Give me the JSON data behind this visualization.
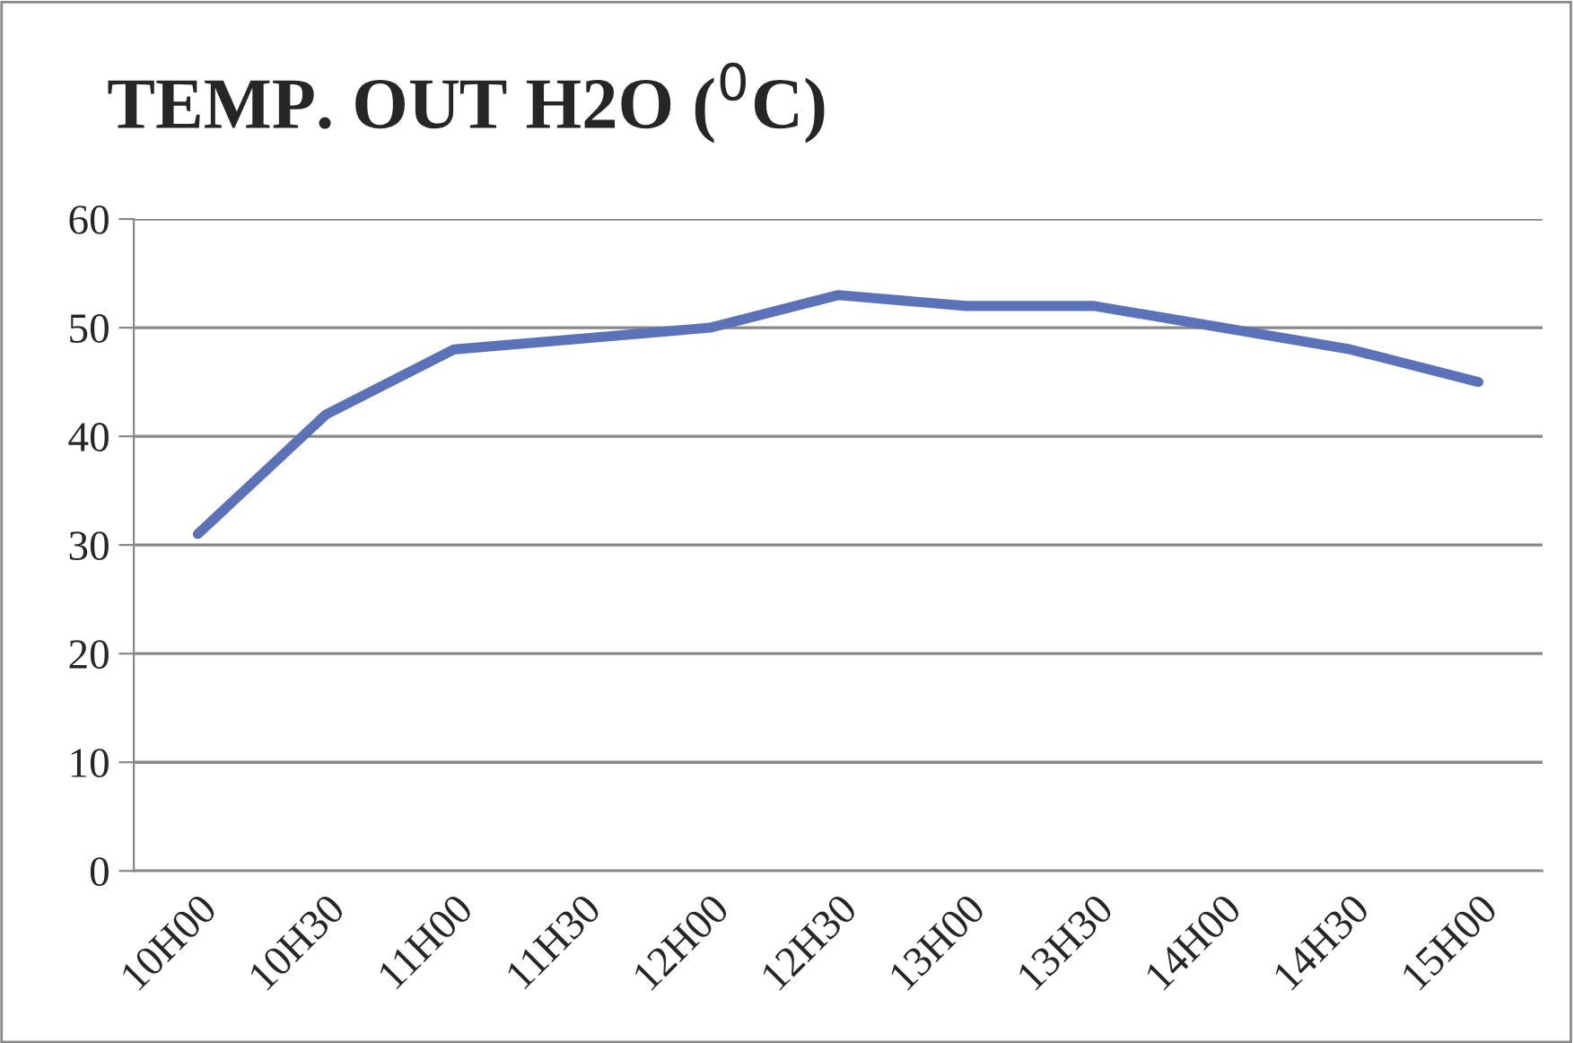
{
  "chart_data": {
    "type": "line",
    "title": "TEMP. OUT H2O ($^{0}$C)",
    "categories": [
      "10H00",
      "10H30",
      "11H00",
      "11H30",
      "12H00",
      "12H30",
      "13H00",
      "13H30",
      "14H00",
      "14H30",
      "15H00"
    ],
    "series": [
      {
        "color": "#5b72b8",
        "values": [
          31,
          42,
          48,
          49,
          50,
          53,
          52,
          52,
          50,
          48,
          45
        ]
      }
    ],
    "ylim": [
      0,
      60
    ],
    "yticks": [
      0,
      10,
      20,
      30,
      40,
      50,
      60
    ],
    "grid": "y",
    "legend": false,
    "marker": "none",
    "line_style": "solid"
  }
}
